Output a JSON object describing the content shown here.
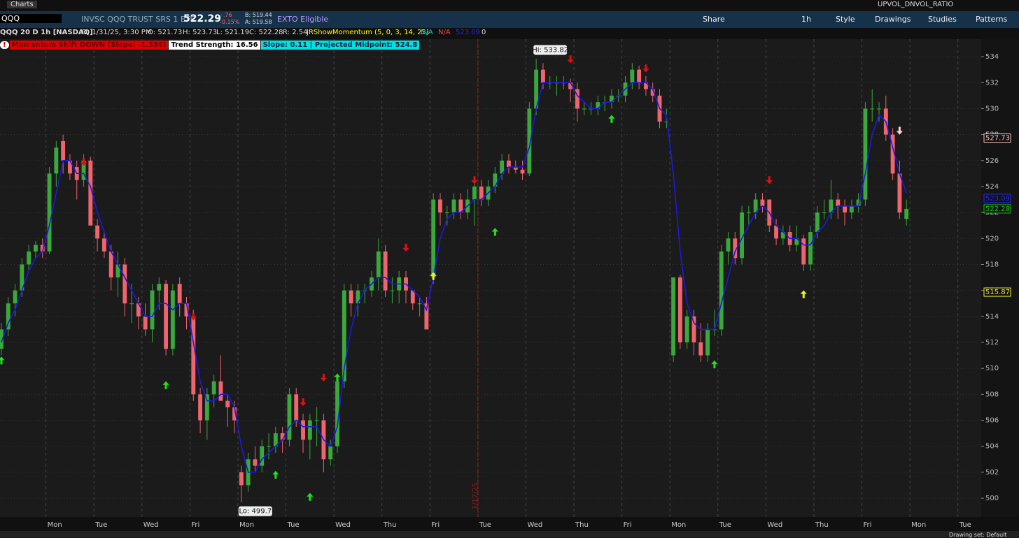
{
  "header": {
    "app": "Charts",
    "study_name": "UPVOL_DNVOL_RATIO",
    "symbol": "QQQ",
    "description": "INVSC QQQ TRUST SRS 1 ETF",
    "last": "522.29",
    "change": "-.76",
    "change_pct": "-0.15%",
    "bid": "B: 519.44",
    "ask": "A: 519.58",
    "exto": "EXTO Eligible",
    "buttons": [
      "Share",
      "1h",
      "Style",
      "Drawings",
      "Studies",
      "Patterns"
    ],
    "info": {
      "name": "QQQ 20 D 1h [NASDAQ]",
      "date": "D: 1/31/25, 3:30 PM",
      "open": "O: 521.73",
      "high": "H: 523.73",
      "low": "L: 521.19",
      "close": "C: 522.28",
      "range": "R: 2.54",
      "study": "JRShowMomentum (5, 0, 3, 14, 25)",
      "na1": "N/A",
      "na2": "N/A",
      "ma": "523.09",
      "zero": "0"
    },
    "status": [
      "Momentum Shift DOWN (Slope: -1.536)",
      "Trend Strength: 16.56",
      "Slope: 0.11 | Projected Midpoint: 524.8"
    ],
    "footer": "Drawing set: Default"
  },
  "chart_data": {
    "type": "candlestick",
    "ylim": [
      498.55,
      535.35
    ],
    "yticks": [
      500,
      502,
      504,
      506,
      508,
      510,
      512,
      514,
      516,
      518,
      520,
      522,
      524,
      526,
      528,
      530,
      532,
      534
    ],
    "xlim": [
      -0.2,
      142.9
    ],
    "grid": true,
    "up_color": "#3aa83a",
    "down_color": "#f0646e",
    "ma_color": "#1a1ae6",
    "xticks": [
      {
        "value": 6.5,
        "label": "Mon"
      },
      {
        "value": 13.5,
        "label": "Tue"
      },
      {
        "value": 20.5,
        "label": "Wed"
      },
      {
        "value": 27.5,
        "label": "Fri"
      },
      {
        "value": 34.5,
        "label": "Mon"
      },
      {
        "value": 41.5,
        "label": "Tue"
      },
      {
        "value": 48.5,
        "label": "Wed"
      },
      {
        "value": 55.5,
        "label": "Thu"
      },
      {
        "value": 62.5,
        "label": "Fri"
      },
      {
        "value": 69.5,
        "label": "Tue"
      },
      {
        "value": 76.5,
        "label": "Wed"
      },
      {
        "value": 83.5,
        "label": "Thu"
      },
      {
        "value": 90.5,
        "label": "Fri"
      },
      {
        "value": 97.5,
        "label": "Mon"
      },
      {
        "value": 104.5,
        "label": "Tue"
      },
      {
        "value": 111.5,
        "label": "Wed"
      },
      {
        "value": 118.5,
        "label": "Thu"
      },
      {
        "value": 125.5,
        "label": "Fri"
      },
      {
        "value": 132.5,
        "label": "Mon"
      },
      {
        "value": 139.5,
        "label": "Tue"
      }
    ],
    "marker_line": {
      "x": 69.5,
      "label": "1/17/25"
    },
    "ohlc": [
      [
        511.5,
        513.5,
        511,
        513
      ],
      [
        513,
        515.5,
        512.5,
        515
      ],
      [
        515,
        516.5,
        514,
        516
      ],
      [
        516,
        518.5,
        515.5,
        518
      ],
      [
        518,
        519.5,
        517.5,
        519
      ],
      [
        519,
        519.8,
        518.5,
        519.5
      ],
      [
        519.5,
        520,
        518.5,
        519
      ],
      [
        519,
        525.5,
        518.8,
        525
      ],
      [
        525,
        527.5,
        524,
        527
      ],
      [
        527.5,
        528,
        525,
        526
      ],
      [
        526,
        526.5,
        524.5,
        525
      ],
      [
        525.5,
        526,
        523,
        524.5
      ],
      [
        524.5,
        526.5,
        524,
        526
      ],
      [
        526,
        526.3,
        521,
        521
      ],
      [
        521,
        521.5,
        519,
        520
      ],
      [
        520,
        520.5,
        518.5,
        519
      ],
      [
        519,
        519.5,
        516,
        517
      ],
      [
        517,
        519,
        515.5,
        518
      ],
      [
        518,
        518.5,
        514,
        515
      ],
      [
        515,
        516.5,
        513.5,
        515
      ],
      [
        515,
        515.5,
        513,
        514
      ],
      [
        514,
        515,
        512.5,
        513
      ],
      [
        513,
        516.5,
        512,
        516
      ],
      [
        516,
        517,
        514.5,
        516.5
      ],
      [
        516.5,
        516.8,
        511,
        511.5
      ],
      [
        511.5,
        516.5,
        511,
        516
      ],
      [
        516.5,
        517,
        514,
        515
      ],
      [
        515,
        515.5,
        513,
        514
      ],
      [
        514,
        514.5,
        507.5,
        508
      ],
      [
        508,
        508.5,
        505,
        506
      ],
      [
        506,
        508.5,
        504.5,
        508
      ],
      [
        508,
        509.5,
        507,
        509
      ],
      [
        509,
        511,
        507.5,
        507.5
      ],
      [
        507.5,
        508,
        505.5,
        507
      ],
      [
        507,
        507.5,
        505,
        506
      ],
      [
        502,
        502.5,
        499.7,
        501
      ],
      [
        501,
        503.5,
        500.5,
        503
      ],
      [
        503,
        504,
        502,
        502.5
      ],
      [
        502.5,
        504.5,
        502,
        504
      ],
      [
        504,
        505,
        503,
        504
      ],
      [
        504,
        505.5,
        503.5,
        505
      ],
      [
        505,
        505.5,
        503.5,
        504.5
      ],
      [
        504.5,
        508.5,
        504,
        508
      ],
      [
        508,
        508.5,
        505.5,
        506
      ],
      [
        506,
        506.5,
        503.5,
        504.5
      ],
      [
        504.5,
        506.5,
        503,
        506
      ],
      [
        506,
        507,
        504,
        506
      ],
      [
        506,
        506.5,
        502,
        503
      ],
      [
        503,
        504.5,
        502.5,
        504
      ],
      [
        504,
        509.5,
        503.5,
        509
      ],
      [
        509,
        516.5,
        508.5,
        516
      ],
      [
        516,
        516.5,
        514,
        515
      ],
      [
        515,
        516.5,
        514,
        516
      ],
      [
        516,
        516.5,
        515,
        516
      ],
      [
        516,
        517.5,
        515.5,
        517
      ],
      [
        517,
        520,
        516,
        519
      ],
      [
        519,
        519.5,
        515.5,
        516
      ],
      [
        516,
        517,
        515,
        516
      ],
      [
        516,
        517.5,
        515,
        517
      ],
      [
        517,
        517.5,
        515,
        516
      ],
      [
        516,
        516,
        514.5,
        515
      ],
      [
        515,
        515.5,
        514,
        515
      ],
      [
        515,
        515.5,
        513,
        513
      ],
      [
        517,
        523.5,
        516.5,
        523
      ],
      [
        523,
        523.5,
        521,
        522
      ],
      [
        522,
        522.5,
        521,
        522
      ],
      [
        522,
        523.5,
        521.5,
        523
      ],
      [
        523,
        523.5,
        521.5,
        522
      ],
      [
        522,
        523.8,
        521.5,
        523
      ],
      [
        523,
        524.5,
        521,
        524
      ],
      [
        524,
        524.5,
        522.5,
        523
      ],
      [
        523,
        524.5,
        522.5,
        524
      ],
      [
        524,
        525.5,
        523.5,
        525
      ],
      [
        525,
        526.5,
        524.5,
        526
      ],
      [
        526,
        526.5,
        525,
        525.5
      ],
      [
        525.5,
        526,
        525,
        525.3
      ],
      [
        525.3,
        526,
        524.5,
        525
      ],
      [
        525,
        530.5,
        524.8,
        530
      ],
      [
        530,
        533.82,
        529.5,
        533
      ],
      [
        533,
        533.5,
        531.5,
        532
      ],
      [
        532,
        532.5,
        531.5,
        532
      ],
      [
        532,
        532.5,
        531,
        532
      ],
      [
        532,
        532.5,
        531.5,
        532
      ],
      [
        532,
        532.3,
        530.5,
        531.5
      ],
      [
        531.5,
        532,
        529,
        530
      ],
      [
        530,
        530.5,
        529.5,
        530
      ],
      [
        530,
        530.5,
        529.5,
        530
      ],
      [
        530,
        531,
        529.5,
        530.5
      ],
      [
        530.5,
        531,
        529.8,
        530.5
      ],
      [
        530.5,
        531.5,
        530,
        531
      ],
      [
        531,
        531.5,
        530.5,
        531
      ],
      [
        531,
        532.5,
        530.5,
        532
      ],
      [
        532,
        533.5,
        531.5,
        533
      ],
      [
        533,
        533.3,
        531.5,
        532
      ],
      [
        532,
        532.5,
        531,
        531.5
      ],
      [
        531.5,
        532,
        530.5,
        531
      ],
      [
        531,
        531.5,
        528.5,
        529
      ],
      [
        529,
        530,
        528.5,
        529
      ],
      [
        511,
        517,
        510.5,
        517
      ],
      [
        517,
        517.2,
        511.5,
        512
      ],
      [
        512,
        514.5,
        511.5,
        514
      ],
      [
        514,
        514.5,
        511,
        512
      ],
      [
        512,
        513.5,
        510.5,
        511
      ],
      [
        511,
        513.5,
        510.5,
        513
      ],
      [
        513,
        514.5,
        512.5,
        513
      ],
      [
        513,
        519.5,
        512.5,
        519
      ],
      [
        519,
        520.5,
        518,
        520
      ],
      [
        520,
        520.5,
        518,
        518.5
      ],
      [
        518.5,
        522.5,
        518,
        522
      ],
      [
        522,
        522.5,
        521,
        522
      ],
      [
        522,
        523.5,
        521.5,
        523
      ],
      [
        523,
        523.5,
        522,
        522.5
      ],
      [
        523,
        523,
        520.5,
        521
      ],
      [
        521,
        521.5,
        519.5,
        520
      ],
      [
        520,
        521,
        519.5,
        520.5
      ],
      [
        520.5,
        521,
        519,
        519.5
      ],
      [
        519.5,
        521,
        519,
        520
      ],
      [
        520,
        520.3,
        517.5,
        518
      ],
      [
        518,
        521,
        517.5,
        520.5
      ],
      [
        520.5,
        522.5,
        520,
        522
      ],
      [
        522,
        523,
        521.5,
        522
      ],
      [
        522,
        524.5,
        521.5,
        523
      ],
      [
        523,
        523.5,
        521.5,
        522.5
      ],
      [
        522.5,
        523,
        521,
        522
      ],
      [
        522,
        523,
        521.5,
        522.5
      ],
      [
        522.5,
        523.5,
        522,
        523
      ],
      [
        523,
        530.5,
        522.5,
        530
      ],
      [
        530,
        531.5,
        529,
        530
      ],
      [
        530,
        530.5,
        529,
        530
      ],
      [
        530,
        531,
        527.5,
        528
      ],
      [
        528,
        528.5,
        524.5,
        525
      ],
      [
        525,
        526,
        521.5,
        522
      ],
      [
        521.5,
        523,
        521,
        522.28
      ]
    ],
    "ma": [
      512,
      513.5,
      514.5,
      516,
      517.5,
      518.5,
      519,
      521,
      523.5,
      526,
      526,
      525,
      525,
      524,
      522,
      520.5,
      519,
      518,
      517,
      516,
      515,
      514,
      514,
      515,
      515,
      514.5,
      515,
      515,
      512,
      509,
      507.5,
      507.5,
      508,
      508,
      507,
      504,
      502,
      502,
      503,
      503.5,
      504,
      504.5,
      505.5,
      506,
      505.5,
      505.5,
      505.5,
      504.5,
      504,
      505.5,
      510,
      513,
      515,
      516,
      516.5,
      517,
      517,
      516.5,
      516.5,
      516.5,
      516,
      515.5,
      514.5,
      517,
      520,
      521.5,
      522,
      522,
      522.5,
      523,
      523,
      523.5,
      524,
      525,
      525.5,
      525.5,
      525.5,
      527,
      530,
      532,
      532,
      532,
      532,
      532,
      531,
      530.5,
      530,
      530,
      530.5,
      530.5,
      531,
      531.5,
      532,
      532,
      532,
      531.5,
      530,
      529.5,
      525,
      519,
      515,
      513.5,
      513,
      513,
      513,
      515,
      517,
      519,
      520,
      521,
      522,
      522.5,
      522,
      521,
      520.5,
      520,
      520,
      519.5,
      519.5,
      520.5,
      521,
      522,
      522.5,
      522.5,
      522.5,
      522.5,
      525,
      528,
      529.5,
      529,
      527,
      525,
      523.5
    ],
    "signals": [
      {
        "x": 0,
        "value": 510.6,
        "color": "#22e022",
        "dir": "up"
      },
      {
        "x": 12,
        "value": 525.9,
        "color": "#e01010",
        "dir": "down"
      },
      {
        "x": 24,
        "value": 508.7,
        "color": "#22e022",
        "dir": "up"
      },
      {
        "x": 28,
        "value": 514,
        "color": "#e01010",
        "dir": "down"
      },
      {
        "x": 40,
        "value": 501.8,
        "color": "#22e022",
        "dir": "up"
      },
      {
        "x": 44,
        "value": 507.4,
        "color": "#e01010",
        "dir": "down"
      },
      {
        "x": 45,
        "value": 500.1,
        "color": "#22e022",
        "dir": "up"
      },
      {
        "x": 47,
        "value": 509.3,
        "color": "#e01010",
        "dir": "down"
      },
      {
        "x": 49,
        "value": 509.3,
        "color": "#22e022",
        "dir": "up"
      },
      {
        "x": 59,
        "value": 519.3,
        "color": "#e01010",
        "dir": "down"
      },
      {
        "x": 63,
        "value": 517.1,
        "color": "#f0f020",
        "dir": "up"
      },
      {
        "x": 69,
        "value": 524.5,
        "color": "#e01010",
        "dir": "down"
      },
      {
        "x": 72,
        "value": 520.5,
        "color": "#22e022",
        "dir": "up"
      },
      {
        "x": 83,
        "value": 533.8,
        "color": "#e01010",
        "dir": "down"
      },
      {
        "x": 89,
        "value": 529.2,
        "color": "#22e022",
        "dir": "up"
      },
      {
        "x": 94,
        "value": 533.1,
        "color": "#e01010",
        "dir": "down"
      },
      {
        "x": 104,
        "value": 510.3,
        "color": "#22e022",
        "dir": "up"
      },
      {
        "x": 112,
        "value": 524.5,
        "color": "#e01010",
        "dir": "down"
      },
      {
        "x": 117,
        "value": 515.7,
        "color": "#f0f020",
        "dir": "up"
      },
      {
        "x": 131,
        "value": 528.3,
        "color": "#ffd0d0",
        "dir": "down"
      }
    ],
    "annotations": [
      {
        "label": "Hi: 533.82",
        "value": 533.82,
        "x": 78
      },
      {
        "label": "Lo: 499.7",
        "value": 499.7,
        "x": 35
      }
    ],
    "price_markers": [
      {
        "value": 527.73,
        "color": "#ffc0c0"
      },
      {
        "value": 523.09,
        "color": "#2a2aff"
      },
      {
        "value": 522.28,
        "color": "#22c022"
      },
      {
        "value": 515.87,
        "color": "#f0f020"
      }
    ]
  }
}
